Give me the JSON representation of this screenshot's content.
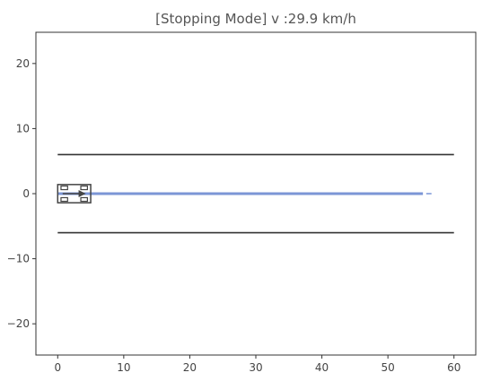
{
  "chart_data": {
    "type": "line",
    "title": "[Stopping Mode]  v :29.9 km/h",
    "xlabel": "",
    "ylabel": "",
    "xlim": [
      -3.3,
      63.3
    ],
    "ylim": [
      -24.8,
      24.8
    ],
    "xticks": [
      0,
      10,
      20,
      30,
      40,
      50,
      60
    ],
    "yticks": [
      -20,
      -10,
      0,
      10,
      20
    ],
    "xtick_labels": [
      "0",
      "10",
      "20",
      "30",
      "40",
      "50",
      "60"
    ],
    "ytick_labels": [
      "−20",
      "−10",
      "0",
      "10",
      "20"
    ],
    "grid": false,
    "lane_lines": [
      {
        "x": [
          0,
          60
        ],
        "y": [
          6,
          6
        ],
        "color": "#333333"
      },
      {
        "x": [
          0,
          60
        ],
        "y": [
          -6,
          -6
        ],
        "color": "#333333"
      }
    ],
    "planned_path": {
      "x": [
        0,
        55.3
      ],
      "y": [
        0,
        0
      ],
      "color": "#7b96d6"
    },
    "stop_marker": {
      "x": [
        55.8,
        56.6
      ],
      "y": [
        0,
        0
      ],
      "color": "#7b96d6"
    },
    "vehicle": {
      "x_rear": 0,
      "x_front": 5,
      "y_bottom": -1.4,
      "y_top": 1.4,
      "heading_deg": 0,
      "color": "#444444"
    }
  }
}
